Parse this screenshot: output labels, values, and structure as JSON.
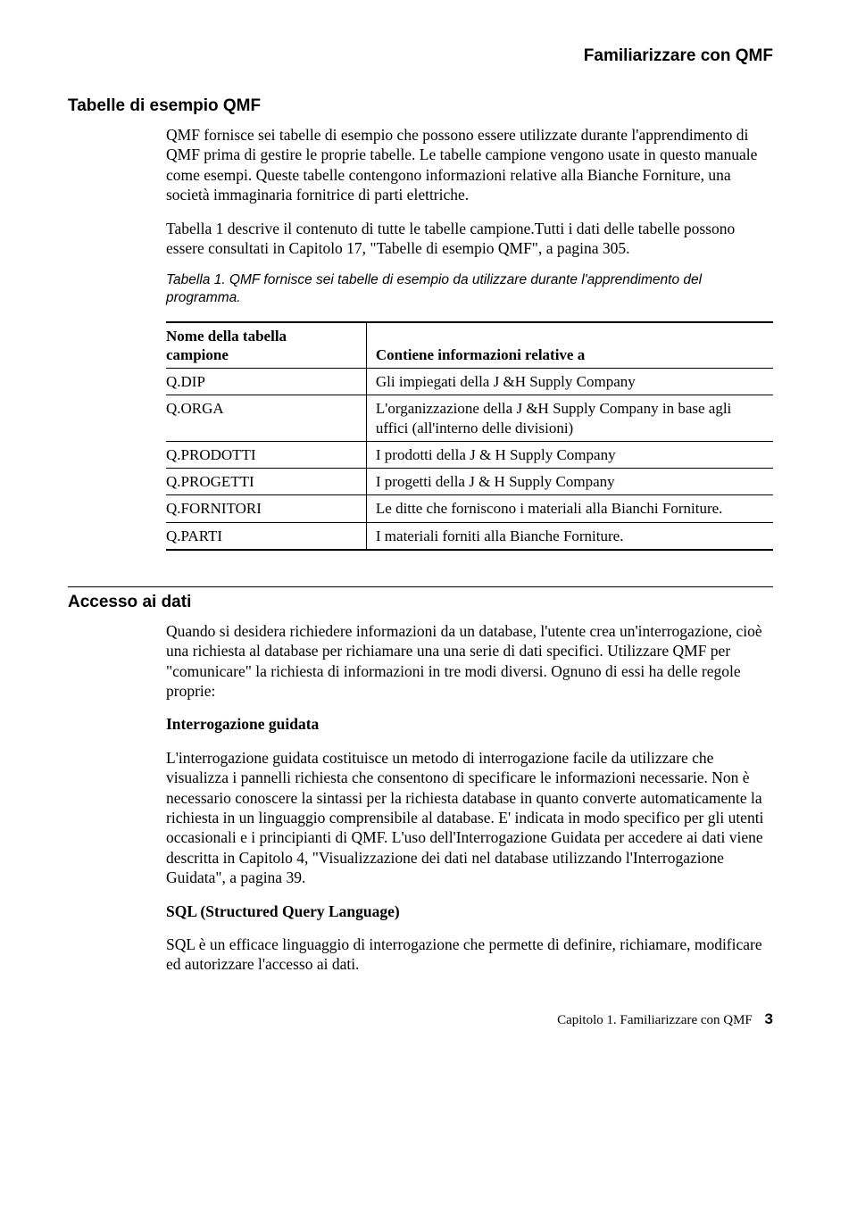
{
  "running_head": "Familiarizzare con QMF",
  "section1": {
    "heading": "Tabelle di esempio QMF",
    "para1": "QMF fornisce sei tabelle di esempio che possono essere utilizzate durante l'apprendimento di QMF prima di gestire le proprie tabelle. Le tabelle campione vengono usate in questo manuale come esempi. Queste tabelle contengono informazioni relative alla Bianche Forniture, una società immaginaria fornitrice di parti elettriche.",
    "para2": "Tabella 1 descrive il contenuto di tutte le tabelle campione.Tutti i dati delle tabelle possono essere consultati in Capitolo 17, \"Tabelle di esempio QMF\", a pagina 305.",
    "table_caption": "Tabella 1. QMF fornisce sei tabelle di esempio da utilizzare durante l'apprendimento del programma.",
    "col1_line1": "Nome della tabella",
    "col1_line2": "campione",
    "col2": "Contiene informazioni relative a",
    "rows": [
      {
        "name": "Q.DIP",
        "desc": "Gli impiegati della J &H Supply Company"
      },
      {
        "name": "Q.ORGA",
        "desc": "L'organizzazione della J &H Supply Company in base agli uffici (all'interno delle divisioni)"
      },
      {
        "name": "Q.PRODOTTI",
        "desc": "I prodotti della J & H Supply Company"
      },
      {
        "name": "Q.PROGETTI",
        "desc": "I progetti della J & H Supply Company"
      },
      {
        "name": "Q.FORNITORI",
        "desc": "Le ditte che forniscono i materiali alla Bianchi Forniture."
      },
      {
        "name": "Q.PARTI",
        "desc": "I materiali forniti alla Bianche Forniture."
      }
    ]
  },
  "section2": {
    "heading": "Accesso ai dati",
    "para1": "Quando si desidera richiedere informazioni da un database, l'utente crea un'interrogazione, cioè una richiesta al database per richiamare una una serie di dati specifici. Utilizzare QMF per \"comunicare\" la richiesta di informazioni in tre modi diversi. Ognuno di essi ha delle regole proprie:",
    "term1": "Interrogazione guidata",
    "def1": "L'interrogazione guidata costituisce un metodo di interrogazione facile da utilizzare che visualizza i pannelli richiesta che consentono di specificare le informazioni necessarie. Non è necessario conoscere la sintassi per la richiesta database in quanto converte automaticamente la richiesta in un linguaggio comprensibile al database. E' indicata in modo specifico per gli utenti occasionali e i principianti di QMF. L'uso dell'Interrogazione Guidata per accedere ai dati viene descritta in Capitolo 4, \"Visualizzazione dei dati nel database utilizzando l'Interrogazione Guidata\", a pagina 39.",
    "term2": "SQL (Structured Query Language)",
    "def2": "SQL è un efficace linguaggio di interrogazione che permette di definire, richiamare, modificare ed autorizzare l'accesso ai dati."
  },
  "footer": {
    "chapter": "Capitolo 1. Familiarizzare con QMF",
    "page": "3"
  }
}
